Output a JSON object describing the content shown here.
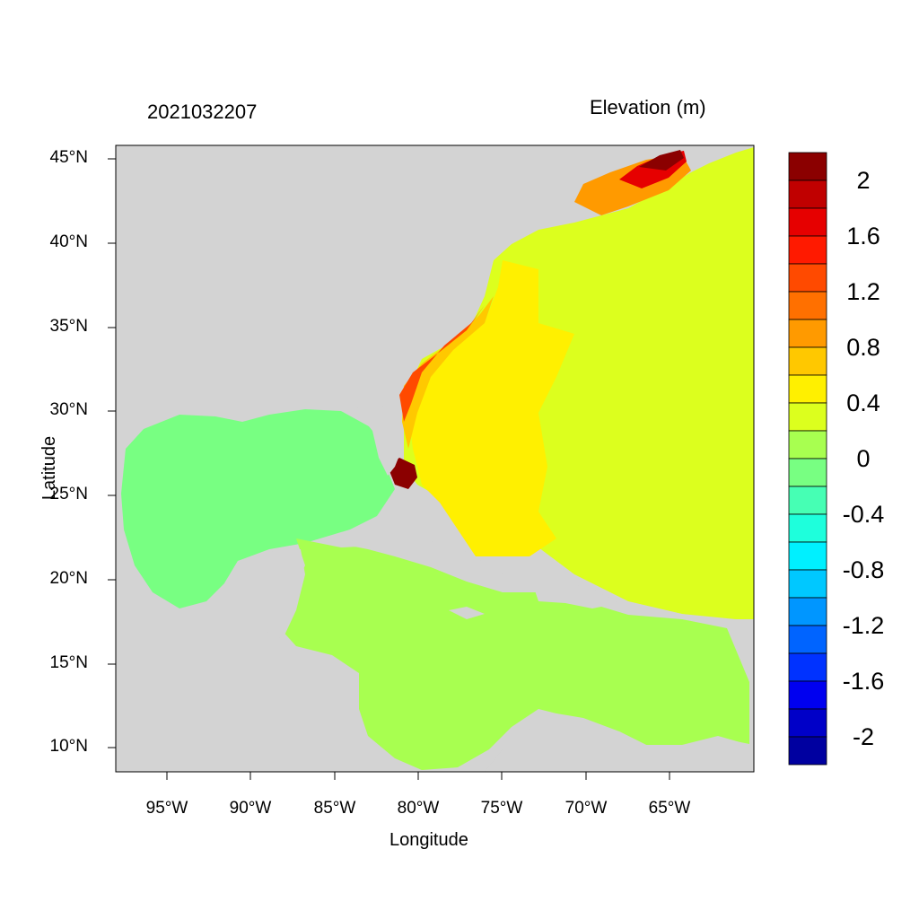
{
  "header": {
    "datetime": "2021032207",
    "variable": "Elevation (m)"
  },
  "axes": {
    "x_label": "Longitude",
    "y_label": "Latitude",
    "x_ticks": [
      "95°W",
      "90°W",
      "85°W",
      "80°W",
      "75°W",
      "70°W",
      "65°W"
    ],
    "y_ticks": [
      "45°N",
      "40°N",
      "35°N",
      "30°N",
      "25°N",
      "20°N",
      "15°N",
      "10°N"
    ]
  },
  "colorbar": {
    "labels": [
      "2",
      "1.6",
      "1.2",
      "0.8",
      "0.4",
      "0",
      "-0.4",
      "-0.8",
      "-1.2",
      "-1.6",
      "-2"
    ],
    "colors": [
      "#8b0000",
      "#c00000",
      "#e60000",
      "#ff1a00",
      "#ff4a00",
      "#ff7000",
      "#ff9a00",
      "#ffc800",
      "#fff000",
      "#dcff1e",
      "#a8ff50",
      "#78ff82",
      "#46ffb4",
      "#1effdc",
      "#00f0ff",
      "#00c8ff",
      "#0096ff",
      "#0064ff",
      "#0032ff",
      "#0000f0",
      "#0000c8",
      "#0000a0"
    ]
  },
  "colors": {
    "land": "#d3d3d3"
  }
}
